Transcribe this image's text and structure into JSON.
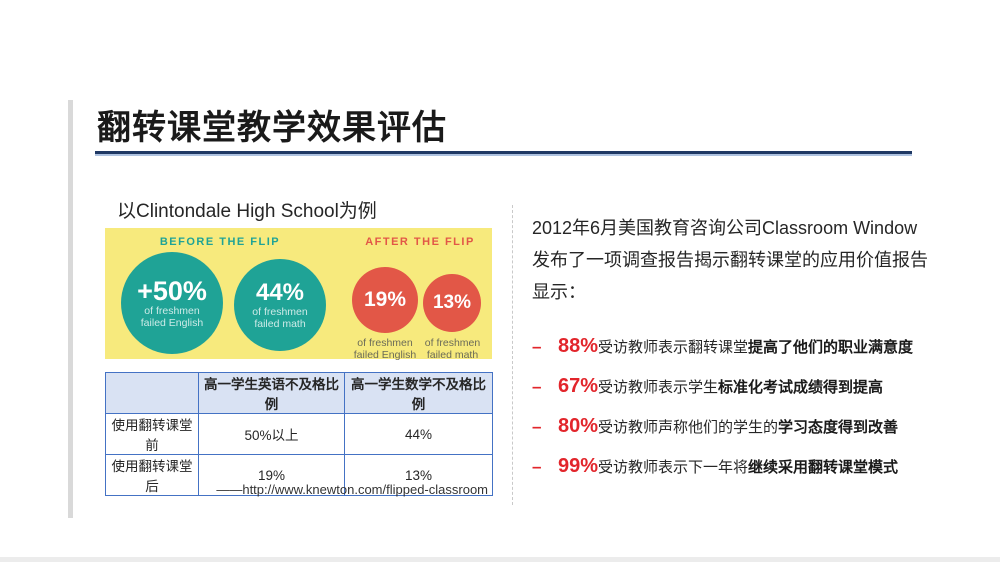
{
  "slide": {
    "title": "翻转课堂教学效果评估",
    "subtitle": "以Clintondale High School为例",
    "source": "——http://www.knewton.com/flipped-classroom"
  },
  "infographic": {
    "before_label": "BEFORE THE FLIP",
    "after_label": "AFTER THE FLIP",
    "circles": [
      {
        "value": "+50%",
        "line1": "of freshmen",
        "line2": "failed English",
        "group": "before"
      },
      {
        "value": "44%",
        "line1": "of freshmen",
        "line2": "failed math",
        "group": "before"
      },
      {
        "value": "19%",
        "line1": "of freshmen",
        "line2": "failed English",
        "group": "after"
      },
      {
        "value": "13%",
        "line1": "of freshmen",
        "line2": "failed math",
        "group": "after"
      }
    ]
  },
  "table": {
    "headers": {
      "col1": "",
      "col2": "高一学生英语不及格比例",
      "col3": "高一学生数学不及格比例"
    },
    "rows": [
      {
        "label": "使用翻转课堂前",
        "english": "50%以上",
        "math": "44%"
      },
      {
        "label": "使用翻转课堂后",
        "english": "19%",
        "math": "13%"
      }
    ]
  },
  "right_panel": {
    "intro": "2012年6月美国教育咨询公司Classroom Window发布了一项调查报告揭示翻转课堂的应用价值报告显示：",
    "bullets": [
      {
        "dash": "–",
        "percent": "88%",
        "normal": "受访教师表示翻转课堂",
        "bold": "提高了他们的职业满意度"
      },
      {
        "dash": "–",
        "percent": "67%",
        "normal": "受访教师表示学生",
        "bold": "标准化考试成绩得到提高"
      },
      {
        "dash": "–",
        "percent": "80%",
        "normal": "受访教师声称他们的学生的",
        "bold": "学习态度得到改善"
      },
      {
        "dash": "–",
        "percent": "99%",
        "normal": "受访教师表示下一年将",
        "bold": "继续采用翻转课堂模式"
      }
    ]
  },
  "colors": {
    "accent_red": "#e2252b",
    "infographic_yellow": "#f7ea7d",
    "infographic_teal": "#1fa396",
    "infographic_red": "#e25747",
    "table_border_blue": "#4472c4",
    "table_header_fill": "#d9e2f3",
    "title_rule_navy": "#1f3864",
    "left_bar_gray": "#d9d9d9"
  },
  "chart_data": {
    "type": "table",
    "title": "Clintondale High School freshmen failure rates (before vs after the flip)",
    "categories": [
      "高一学生英语不及格比例",
      "高一学生数学不及格比例"
    ],
    "series": [
      {
        "name": "使用翻转课堂前",
        "values": [
          "50%以上",
          "44%"
        ]
      },
      {
        "name": "使用翻转课堂后",
        "values": [
          "19%",
          "13%"
        ]
      }
    ],
    "annotations": [
      "BEFORE THE FLIP: +50% of freshmen failed English, 44% of freshmen failed math",
      "AFTER THE FLIP: 19% of freshmen failed English, 13% of freshmen failed math"
    ]
  }
}
